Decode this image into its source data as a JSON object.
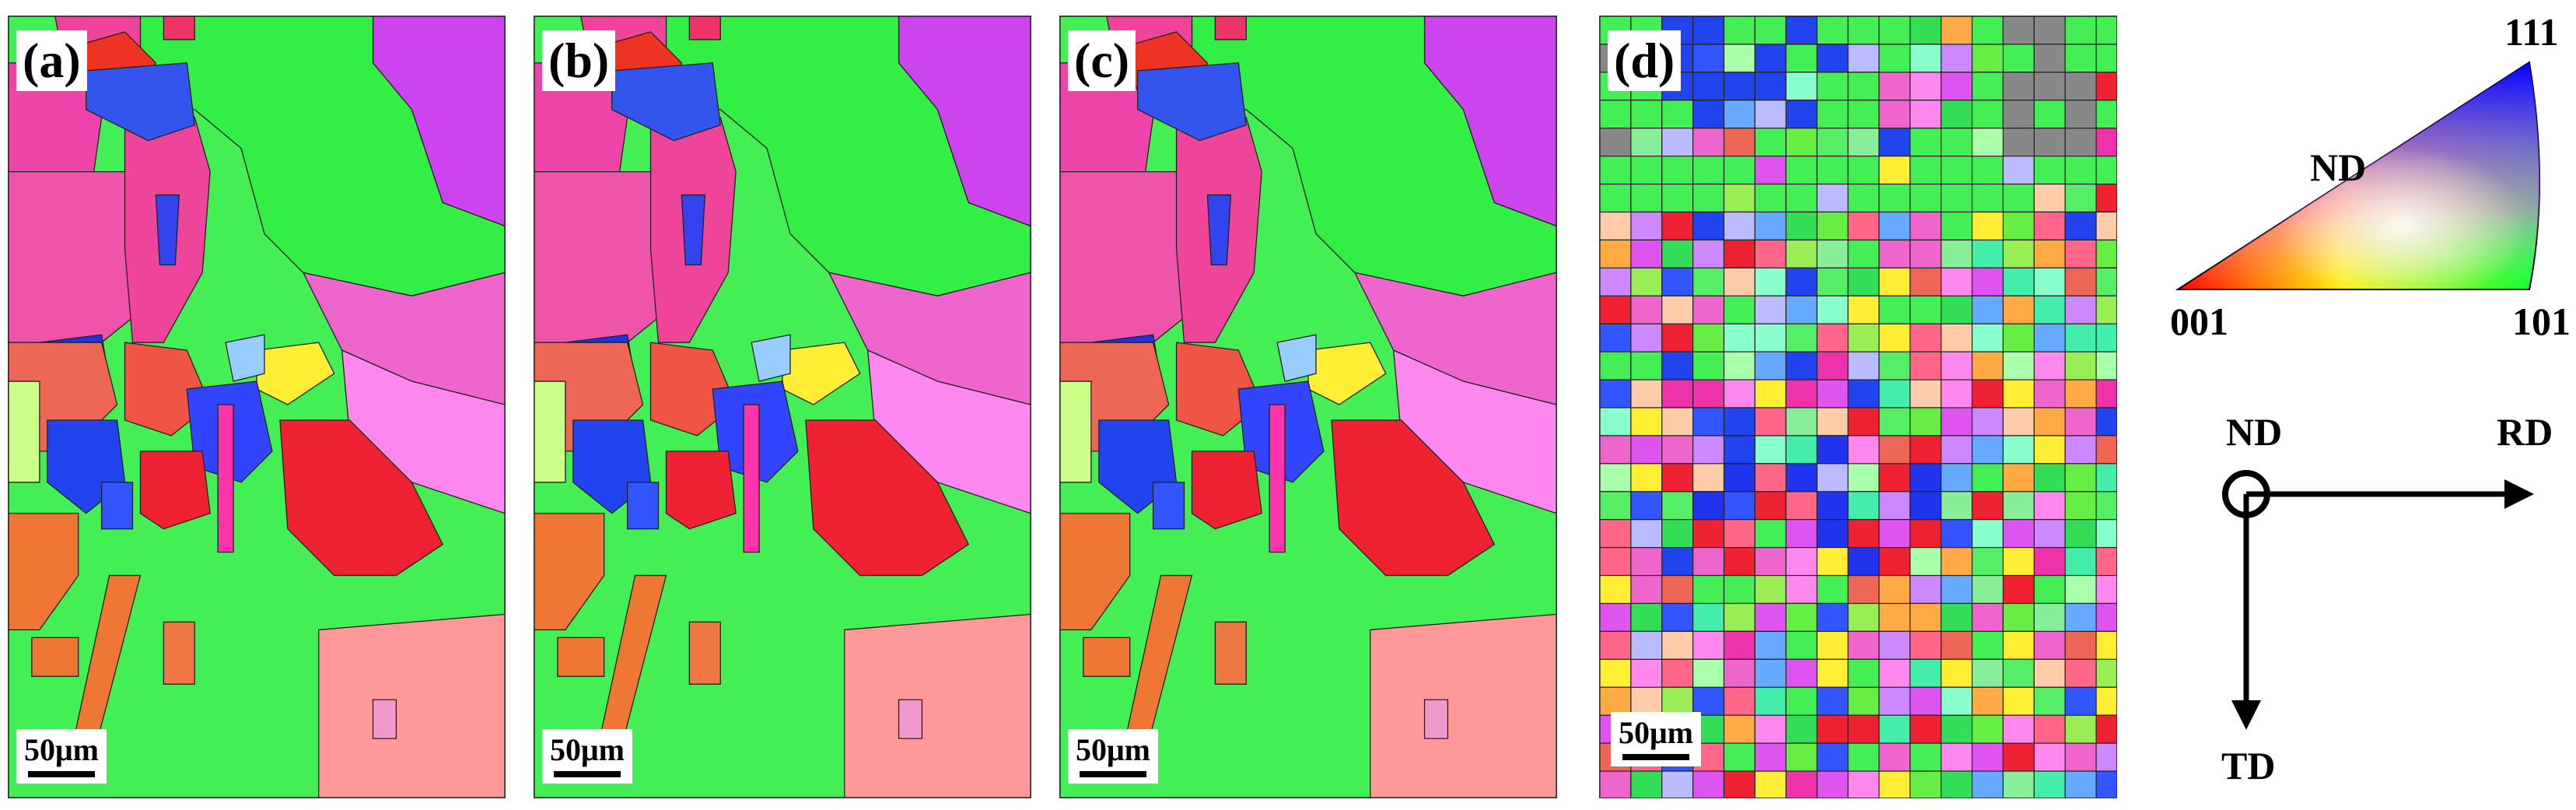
{
  "panels": [
    {
      "label": "(a)",
      "scale": "50μm"
    },
    {
      "label": "(b)",
      "scale": "50μm"
    },
    {
      "label": "(c)",
      "scale": "50μm"
    },
    {
      "label": "(d)",
      "scale": "50μm"
    }
  ],
  "ipf_legend": {
    "corner_001": "001",
    "corner_101": "101",
    "corner_111": "111",
    "direction": "ND",
    "colors": {
      "001": "#ff0000",
      "101": "#00ff00",
      "111": "#0000ff"
    }
  },
  "axes": {
    "origin": "ND",
    "horizontal": "RD",
    "vertical": "TD"
  }
}
